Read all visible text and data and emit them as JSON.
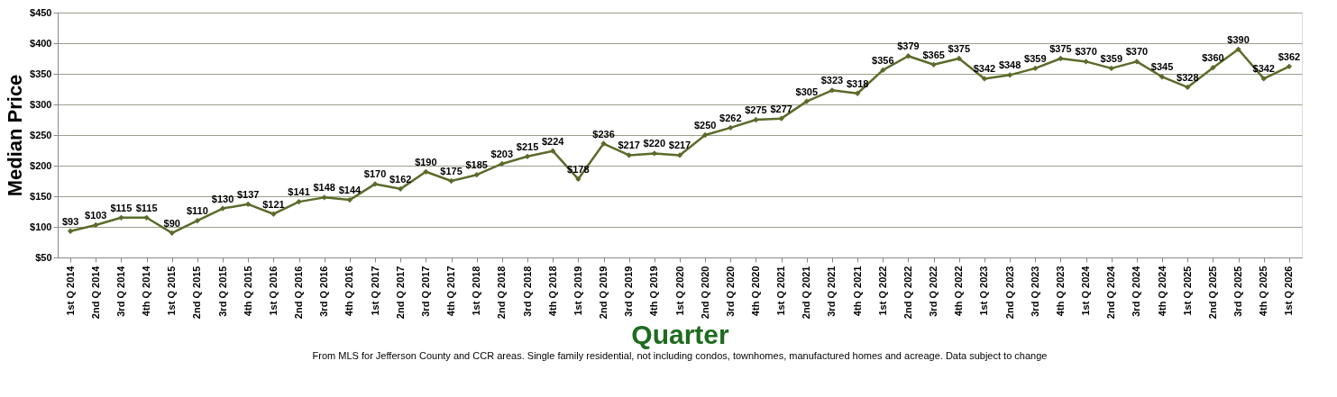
{
  "chart_data": {
    "type": "line",
    "xlabel": "Quarter",
    "ylabel": "Median Price",
    "annotations": [
      "From MLS for Jefferson County and CCR areas. Single family residential, not including condos, townhomes, manufactured homes and acreage.  Data subject to change"
    ],
    "categories": [
      "1st Q 2014",
      "2nd Q 2014",
      "3rd Q 2014",
      "4th Q 2014",
      "1st Q 2015",
      "2nd Q 2015",
      "3rd Q 2015",
      "4th Q 2015",
      "1st Q 2016",
      "2nd Q 2016",
      "3rd Q 2016",
      "4th Q 2016",
      "1st Q 2017",
      "2nd Q 2017",
      "3rd Q 2017",
      "4th Q 2017",
      "1st Q 2018",
      "2nd Q 2018",
      "3rd Q 2018",
      "4th Q 2018",
      "1st Q 2019",
      "2nd Q 2019",
      "3rd Q 2019",
      "4th Q 2019",
      "1st Q 2020",
      "2nd Q 2020",
      "3rd Q 2020",
      "4th Q 2020",
      "1st Q 2021",
      "2nd Q 2021",
      "3rd Q 2021",
      "4th Q 2021",
      "1st Q 2022",
      "2nd Q 2022",
      "3rd Q 2022",
      "4th Q 2022",
      "1st Q 2023",
      "2nd Q 2023",
      "3rd Q 2023",
      "4th Q 2023",
      "1st Q 2024",
      "2nd Q 2024",
      "3rd Q 2024",
      "4th Q 2024",
      "1st Q 2025",
      "2nd Q 2025",
      "3rd Q 2025",
      "4th Q 2025",
      "1st Q 2026"
    ],
    "series": [
      {
        "color": "#5b6b2b",
        "values": [
          93,
          103,
          115,
          115,
          90,
          110,
          130,
          137,
          121,
          141,
          148,
          144,
          170,
          162,
          190,
          175,
          185,
          203,
          215,
          224,
          178,
          236,
          217,
          220,
          217,
          250,
          262,
          275,
          277,
          305,
          323,
          318,
          356,
          379,
          365,
          375,
          342,
          348,
          359,
          375,
          370,
          359,
          370,
          345,
          328,
          360,
          390,
          342,
          362
        ],
        "value_labels": [
          "$93",
          "$103",
          "$115",
          "$115",
          "$90",
          "$110",
          "$130",
          "$137",
          "$121",
          "$141",
          "$148",
          "$144",
          "$170",
          "$162",
          "$190",
          "$175",
          "$185",
          "$203",
          "$215",
          "$224",
          "$178",
          "$236",
          "$217",
          "$220",
          "$217",
          "$250",
          "$262",
          "$275",
          "$277",
          "$305",
          "$323",
          "$318",
          "$356",
          "$379",
          "$365",
          "$375",
          "$342",
          "$348",
          "$359",
          "$375",
          "$370",
          "$359",
          "$370",
          "$345",
          "$328",
          "$360",
          "$390",
          "$342",
          "$362"
        ]
      }
    ],
    "ylim": [
      50,
      450
    ],
    "yticks": [
      {
        "value": 50,
        "label": "$50"
      },
      {
        "value": 100,
        "label": "$100"
      },
      {
        "value": 150,
        "label": "$150"
      },
      {
        "value": 200,
        "label": "$200"
      },
      {
        "value": 250,
        "label": "$250"
      },
      {
        "value": 300,
        "label": "$300"
      },
      {
        "value": 350,
        "label": "$350"
      },
      {
        "value": 400,
        "label": "$400"
      },
      {
        "value": 450,
        "label": "$450"
      }
    ],
    "grid": "y",
    "marker": "diamond",
    "line_style": "solid"
  }
}
